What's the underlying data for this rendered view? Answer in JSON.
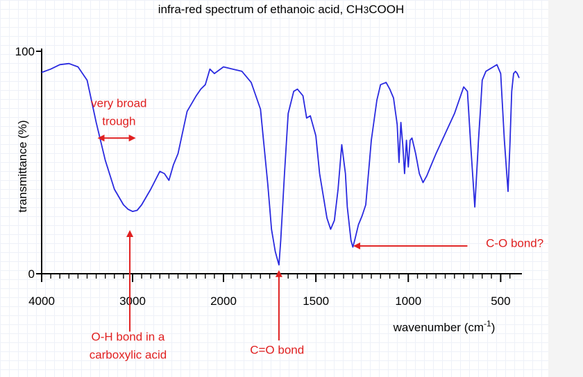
{
  "chart_data": {
    "type": "line",
    "title_main": "infra-red spectrum of ethanoic acid,  CH",
    "title_sub": "3",
    "title_tail": "COOH",
    "ylabel": "transmittance (%)",
    "xlabel_main": "wavenumber (cm",
    "xlabel_sup": "-1",
    "xlabel_tail": ")",
    "xlim": [
      4000,
      400
    ],
    "ylim": [
      0,
      100
    ],
    "x_ticks": [
      4000,
      3000,
      2000,
      1500,
      1000,
      500
    ],
    "x_tick_labels": [
      "4000",
      "3000",
      "2000",
      "1500",
      "1000",
      "500"
    ],
    "y_ticks": [
      0,
      100
    ],
    "y_tick_labels": [
      "0",
      "100"
    ],
    "x_axis_segments": [
      [
        4000,
        2000
      ],
      [
        2000,
        400
      ]
    ],
    "series": [
      {
        "color": "#2a2ae0",
        "x": [
          4000,
          3900,
          3800,
          3700,
          3600,
          3500,
          3400,
          3300,
          3200,
          3100,
          3050,
          3000,
          2950,
          2900,
          2800,
          2700,
          2650,
          2600,
          2550,
          2500,
          2400,
          2300,
          2250,
          2200,
          2150,
          2100,
          2000,
          1950,
          1900,
          1850,
          1800,
          1760,
          1740,
          1720,
          1710,
          1700,
          1690,
          1670,
          1650,
          1620,
          1600,
          1570,
          1550,
          1530,
          1500,
          1480,
          1460,
          1440,
          1420,
          1400,
          1380,
          1360,
          1340,
          1330,
          1310,
          1300,
          1290,
          1270,
          1250,
          1230,
          1200,
          1170,
          1150,
          1120,
          1100,
          1080,
          1060,
          1050,
          1040,
          1030,
          1020,
          1010,
          1000,
          990,
          980,
          960,
          940,
          920,
          900,
          880,
          850,
          800,
          750,
          700,
          680,
          660,
          640,
          630,
          620,
          610,
          600,
          580,
          560,
          540,
          520,
          500,
          480,
          460,
          450,
          440,
          430,
          420,
          410,
          400
        ],
        "y": [
          90.5,
          92,
          94,
          94.5,
          93,
          87,
          68,
          51,
          38,
          31,
          29,
          28,
          28.5,
          31,
          38,
          46,
          45,
          42,
          49,
          54,
          73,
          80,
          83,
          85,
          92,
          90,
          93,
          92,
          91,
          86,
          74,
          40,
          20,
          10,
          7,
          4,
          15,
          45,
          72,
          82,
          83,
          80,
          70,
          71,
          62,
          45,
          35,
          25,
          20,
          24,
          38,
          58,
          45,
          30,
          15,
          12,
          15,
          22,
          26,
          31,
          60,
          78,
          85,
          86,
          83,
          79,
          67,
          50,
          68,
          58,
          45,
          60,
          48,
          60,
          61,
          54,
          45,
          41,
          44,
          48,
          54,
          63,
          72,
          84,
          82,
          55,
          30,
          45,
          60,
          73,
          87,
          91,
          92,
          93,
          94,
          90,
          60,
          37,
          58,
          82,
          90,
          91,
          90,
          88
        ]
      }
    ],
    "annotations": [
      {
        "id": "broad",
        "lines": [
          "very broad",
          "trough"
        ],
        "x": 3150,
        "y": 75
      },
      {
        "id": "oh",
        "lines": [
          "O-H bond in a",
          "carboxylic acid"
        ],
        "x": 3050,
        "y": -30
      },
      {
        "id": "co_double",
        "lines": [
          "C=O bond"
        ],
        "x": 1710,
        "y": -36
      },
      {
        "id": "co_single",
        "lines": [
          "C-O bond?"
        ],
        "x": 580,
        "y": 12
      }
    ],
    "arrows": [
      {
        "id": "broad-arrow",
        "type": "double-horizontal",
        "x1": 3370,
        "x2": 2980,
        "y": 61
      },
      {
        "id": "oh-arrow",
        "type": "up",
        "x": 3030,
        "y_from": -26,
        "y_to": 19
      },
      {
        "id": "co-double-arrow",
        "type": "up",
        "x": 1700,
        "y_from": -30,
        "y_to": 1
      },
      {
        "id": "co-single-arrow",
        "type": "left",
        "x_from": 680,
        "x_to": 1290,
        "y": 12.5
      }
    ],
    "colors": {
      "line": "#2a2ae0",
      "annotation": "#e02020",
      "axis": "#000000"
    },
    "grid": true
  }
}
